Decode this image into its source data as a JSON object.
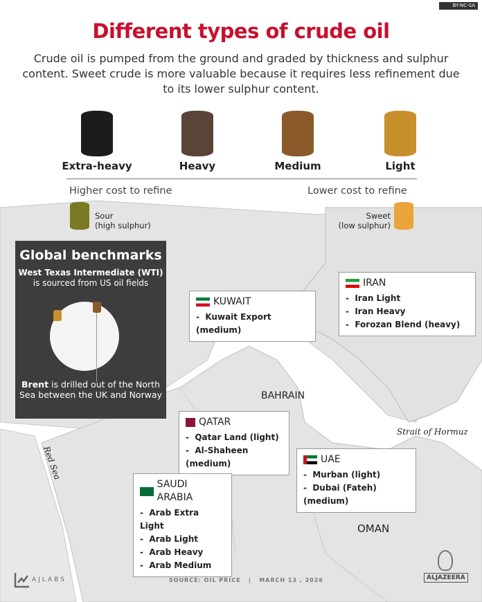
{
  "license": "BY-NC-SA",
  "title": "Different types of crude oil",
  "subtitle": "Crude oil is pumped from the ground and graded by thickness and sulphur content. Sweet crude is more valuable because it requires less refinement due to its lower sulphur content.",
  "grades": [
    {
      "label": "Extra-heavy",
      "color": "#1c1c1c"
    },
    {
      "label": "Heavy",
      "color": "#5a4437"
    },
    {
      "label": "Medium",
      "color": "#8b5a2b"
    },
    {
      "label": "Light",
      "color": "#c8902c"
    }
  ],
  "cost": {
    "left": "Higher cost to refine",
    "right": "Lower cost to refine"
  },
  "sour": {
    "label": "Sour",
    "detail": "(high sulphur)",
    "color": "#7b7a22"
  },
  "sweet": {
    "label": "Sweet",
    "detail": "(low sulphur)",
    "color": "#eaa43a"
  },
  "benchmarks": {
    "title": "Global benchmarks",
    "wti_bold": "West Texas Intermediate (WTI)",
    "wti_rest": "is sourced from US oil fields",
    "brent_bold": "Brent",
    "brent_rest": "is drilled out of the North Sea between the UK and Norway"
  },
  "countries": {
    "kuwait": {
      "name": "KUWAIT",
      "items": [
        "Kuwait Export (medium)"
      ]
    },
    "iran": {
      "name": "IRAN",
      "items": [
        "Iran Light",
        "Iran Heavy",
        "Forozan Blend (heavy)"
      ]
    },
    "qatar": {
      "name": "QATAR",
      "items": [
        "Qatar Land (light)",
        "Al-Shaheen (medium)"
      ]
    },
    "uae": {
      "name": "UAE",
      "items": [
        "Murban (light)",
        "Dubai (Fateh) (medium)"
      ]
    },
    "saudi": {
      "name": "SAUDI ARABIA",
      "items": [
        "Arab Extra Light",
        "Arab Light",
        "Arab Heavy",
        "Arab Medium"
      ]
    }
  },
  "places": {
    "bahrain": "BAHRAIN",
    "hormuz": "Strait of Hormuz",
    "oman": "OMAN",
    "red_sea": "Red Sea"
  },
  "footer": {
    "ajlabs": "AJLABS",
    "source": "SOURCE:  OIL PRICE",
    "sep": "|",
    "date": "MARCH 13 , 2026",
    "brand": "ALJAZEERA"
  }
}
